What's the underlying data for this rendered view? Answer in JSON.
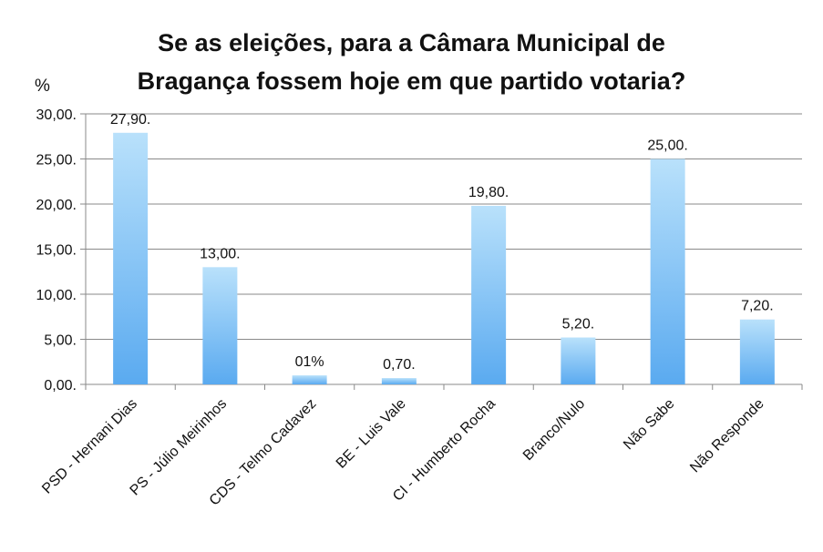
{
  "chart_data": {
    "type": "bar",
    "title_lines": [
      "Se as eleições, para a Câmara Municipal de",
      "Bragança fossem hoje em que partido votaria?"
    ],
    "ylabel": "%",
    "xlabel": "",
    "ylim": [
      0,
      30
    ],
    "yticks": [
      0,
      5,
      10,
      15,
      20,
      25,
      30
    ],
    "ytick_labels": [
      "0,00.",
      "5,00.",
      "10,00.",
      "15,00.",
      "20,00.",
      "25,00.",
      "30,00."
    ],
    "grid": true,
    "categories": [
      "PSD - Hernani Dias",
      "PS - Júlio Meirinhos",
      "CDS - Telmo Cadavez",
      "BE - Luis Vale",
      "CI - Humberto Rocha",
      "Branco/Nulo",
      "Não Sabe",
      "Não Responde"
    ],
    "values": [
      27.9,
      13.0,
      1.0,
      0.7,
      19.8,
      5.2,
      25.0,
      7.2
    ],
    "data_labels": [
      "27,90.",
      "13,00.",
      "01%",
      "0,70.",
      "19,80.",
      "5,20.",
      "25,00.",
      "7,20."
    ],
    "colors": {
      "bar_top": "#b9e1fb",
      "bar_bottom": "#5aaaf0",
      "grid": "#8a8a8a",
      "axis": "#8a8a8a"
    }
  }
}
